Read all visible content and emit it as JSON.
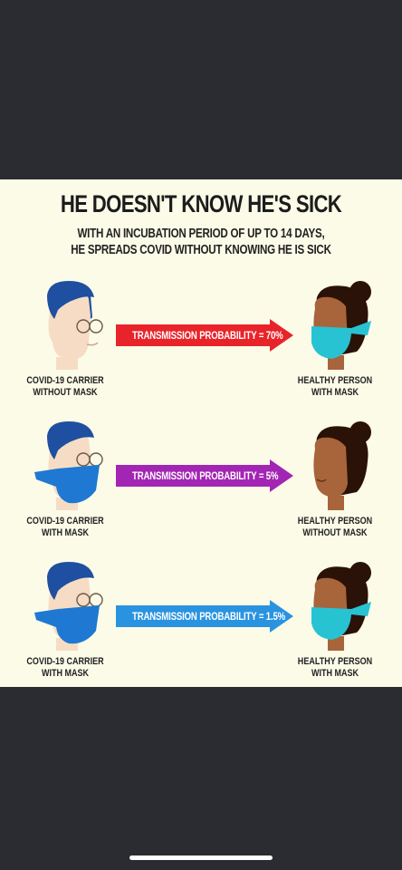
{
  "poster": {
    "title": "HE DOESN'T KNOW HE'S SICK",
    "subtitle_line1": "WITH AN INCUBATION PERIOD OF UP TO 14 DAYS,",
    "subtitle_line2": "HE SPREADS COVID WITHOUT KNOWING HE IS SICK"
  },
  "scenarios": [
    {
      "label": "TRANSMISSION PROBABILITY = 70%",
      "arrow_color": "#e8242a",
      "carrier_line1": "COVID-19 CARRIER",
      "carrier_line2": "WITHOUT MASK",
      "healthy_line1": "HEALTHY PERSON",
      "healthy_line2": "WITH MASK",
      "carrier_mask": false,
      "healthy_mask": true,
      "carrier_mask_color": "#1f78d1",
      "healthy_mask_color": "#27c3d3"
    },
    {
      "label": "TRANSMISSION PROBABILITY = 5%",
      "arrow_color": "#a325b4",
      "carrier_line1": "COVID-19 CARRIER",
      "carrier_line2": "WITH MASK",
      "healthy_line1": "HEALTHY PERSON",
      "healthy_line2": "WITHOUT MASK",
      "carrier_mask": true,
      "healthy_mask": false,
      "carrier_mask_color": "#1f78d1",
      "healthy_mask_color": "#27c3d3"
    },
    {
      "label": "TRANSMISSION PROBABILITY = 1.5%",
      "arrow_color": "#2a93e0",
      "carrier_line1": "COVID-19 CARRIER",
      "carrier_line2": "WITH MASK",
      "healthy_line1": "HEALTHY PERSON",
      "healthy_line2": "WITH MASK",
      "carrier_mask": true,
      "healthy_mask": true,
      "carrier_mask_color": "#1f78d1",
      "healthy_mask_color": "#27c3d3"
    }
  ],
  "colors": {
    "page_background": "#2a2c31",
    "poster_background": "#fbfbe8",
    "man_hair": "#1e4fa0",
    "man_skin": "#f6dcc4",
    "woman_hair": "#2a1208",
    "woman_skin": "#a8643a"
  }
}
